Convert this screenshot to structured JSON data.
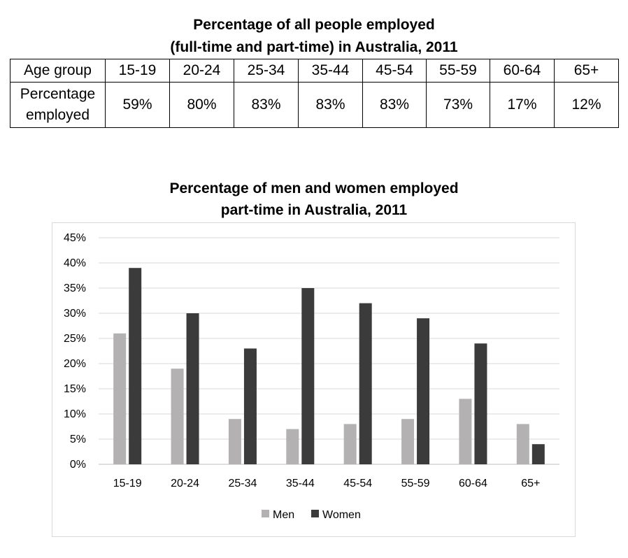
{
  "table": {
    "title_line1": "Percentage of all people employed",
    "title_line2": "(full-time and part-time) in Australia, 2011",
    "row_header_1": "Age group",
    "row_header_2_line1": "Percentage",
    "row_header_2_line2": "employed",
    "age_groups": [
      "15-19",
      "20-24",
      "25-34",
      "35-44",
      "45-54",
      "55-59",
      "60-64",
      "65+"
    ],
    "percentages": [
      "59%",
      "80%",
      "83%",
      "83%",
      "83%",
      "73%",
      "17%",
      "12%"
    ]
  },
  "colors": {
    "men": "#b3b1b1",
    "women": "#3b3b3b",
    "grid": "#d9d9d9",
    "axis": "#bfbfbf"
  },
  "chart_data": {
    "type": "bar",
    "title_line1": "Percentage of men and women employed",
    "title_line2": "part-time in Australia, 2011",
    "categories": [
      "15-19",
      "20-24",
      "25-34",
      "35-44",
      "45-54",
      "55-59",
      "60-64",
      "65+"
    ],
    "series": [
      {
        "name": "Men",
        "values": [
          26,
          19,
          9,
          7,
          8,
          9,
          13,
          8
        ]
      },
      {
        "name": "Women",
        "values": [
          39,
          30,
          23,
          35,
          32,
          29,
          24,
          4
        ]
      }
    ],
    "ylim": [
      0,
      45
    ],
    "y_ticks": [
      "0%",
      "5%",
      "10%",
      "15%",
      "20%",
      "25%",
      "30%",
      "35%",
      "40%",
      "45%"
    ],
    "grid": true,
    "legend": "bottom"
  }
}
